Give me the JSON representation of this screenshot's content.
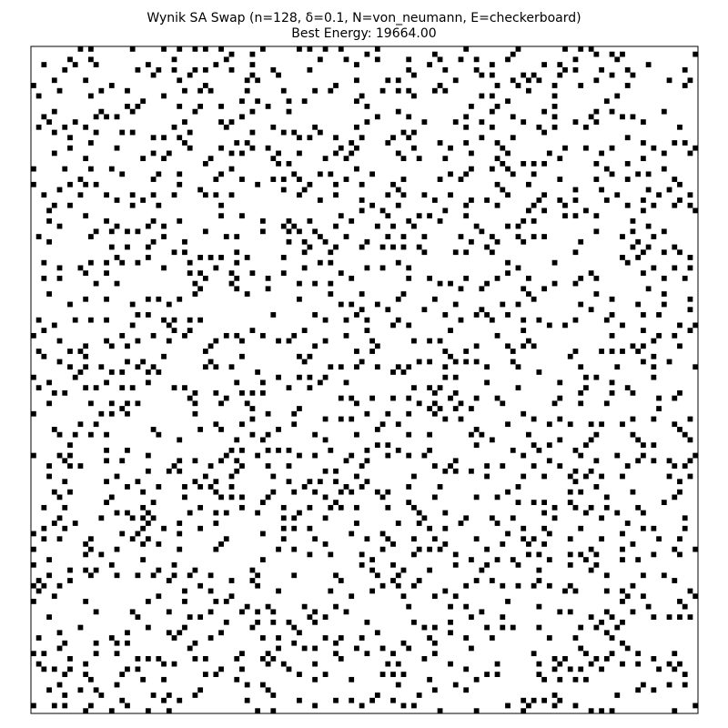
{
  "title": "Wynik SA Swap (n=128, δ=0.1, N=von_neumann, E=checkerboard)",
  "subtitle": "Best Energy: 19664.00",
  "colors": {
    "occupied": "#000000",
    "empty": "#ffffff",
    "frame": "#000000"
  },
  "chart_data": {
    "type": "heatmap",
    "title": "Wynik SA Swap (n=128, δ=0.1, N=von_neumann, E=checkerboard)",
    "subtitle": "Best Energy: 19664.00",
    "grid_size": 128,
    "density": 0.1,
    "neighborhood": "von_neumann",
    "energy_function": "checkerboard",
    "best_energy": 19664.0,
    "values": "binary occupancy matrix 128x128 (1 = black cell); approx. 10% occupied, cells scattered with no adjacent pairs",
    "axes_visible": false,
    "grid": false
  }
}
